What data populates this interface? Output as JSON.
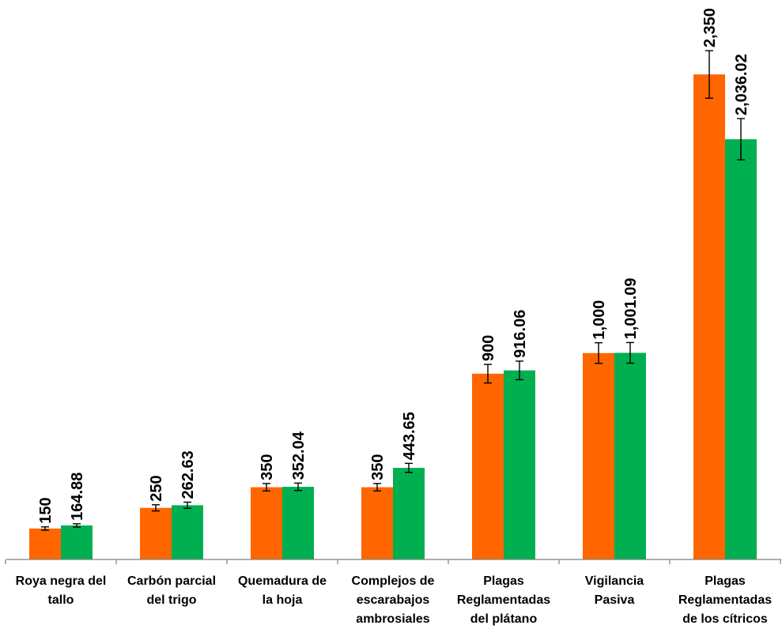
{
  "chart_data": {
    "type": "bar",
    "categories": [
      [
        "Roya negra del",
        "tallo"
      ],
      [
        "Carbón parcial",
        "del trigo"
      ],
      [
        "Quemadura de",
        "la hoja"
      ],
      [
        "Complejos de",
        "escarabajos",
        "ambrosiales"
      ],
      [
        "Plagas",
        "Reglamentadas",
        "del plátano"
      ],
      [
        "Vigilancia",
        "Pasiva"
      ],
      [
        "Plagas",
        "Reglamentadas",
        "de los cítricos"
      ]
    ],
    "series": [
      {
        "color": "#FF6600",
        "values": [
          150,
          250,
          350,
          350,
          900,
          1000,
          2350
        ],
        "labels": [
          "150",
          "250",
          "350",
          "350",
          "900",
          "1,000",
          "2,350"
        ],
        "error": [
          8,
          15,
          18,
          18,
          45,
          50,
          115
        ]
      },
      {
        "color": "#00B050",
        "values": [
          164.88,
          262.63,
          352.04,
          443.65,
          916.06,
          1001.09,
          2036.02
        ],
        "labels": [
          "164.88",
          "262.63",
          "352.04",
          "443.65",
          "916.06",
          "1,001.09",
          "2,036.02"
        ],
        "error": [
          8,
          15,
          18,
          22,
          45,
          50,
          100
        ]
      }
    ],
    "ylim": [
      0,
      2700
    ],
    "grid": false,
    "legend": "none",
    "title": "",
    "xlabel": "",
    "ylabel": ""
  }
}
